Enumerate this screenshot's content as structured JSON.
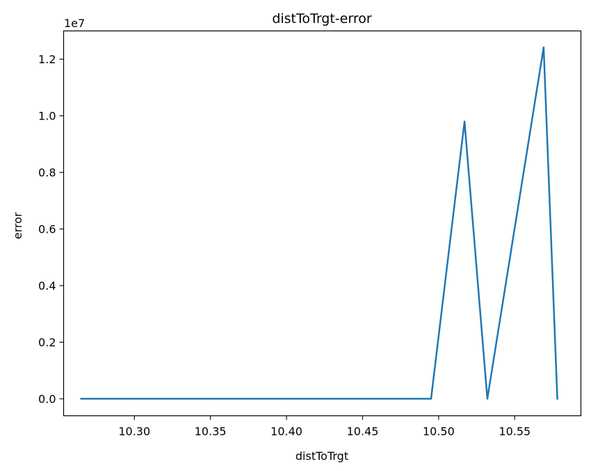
{
  "chart_data": {
    "type": "line",
    "title": "distToTrgt-error",
    "xlabel": "distToTrgt",
    "ylabel": "error",
    "y_offset_label": "1e7",
    "xlim": [
      10.2535,
      10.5935
    ],
    "ylim": [
      -0.06,
      1.3
    ],
    "xticks": [
      10.3,
      10.35,
      10.4,
      10.45,
      10.5,
      10.55
    ],
    "xtick_labels": [
      "10.30",
      "10.35",
      "10.40",
      "10.45",
      "10.50",
      "10.55"
    ],
    "yticks": [
      0.0,
      0.2,
      0.4,
      0.6,
      0.8,
      1.0,
      1.2
    ],
    "ytick_labels": [
      "0.0",
      "0.2",
      "0.4",
      "0.6",
      "0.8",
      "1.0",
      "1.2"
    ],
    "grid": false,
    "colors": {
      "line": "#1f77b4",
      "axes": "#000000",
      "background": "#ffffff"
    },
    "series": [
      {
        "x": [
          10.265,
          10.495,
          10.517,
          10.532,
          10.569,
          10.578
        ],
        "y": [
          0.0,
          0.0,
          0.98,
          0.0,
          1.242,
          0.0
        ]
      }
    ]
  }
}
